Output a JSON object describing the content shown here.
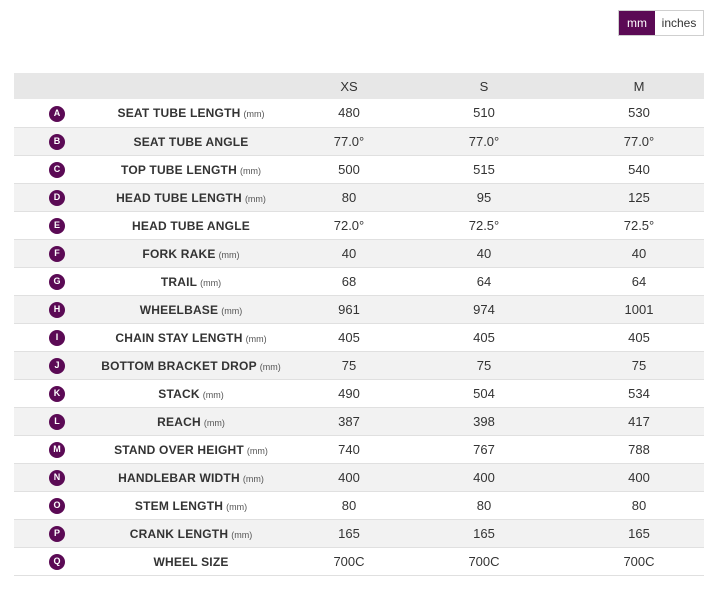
{
  "units": {
    "mm_label": "mm",
    "inches_label": "inches",
    "selected": "mm"
  },
  "colors": {
    "accent": "#5b0a55",
    "header_bg": "#e7e7e7",
    "row_alt_bg": "#f2f2f2"
  },
  "table": {
    "sizes": [
      "XS",
      "S",
      "M"
    ],
    "rows": [
      {
        "letter": "A",
        "name": "SEAT TUBE LENGTH",
        "unit": "(mm)",
        "values": [
          "480",
          "510",
          "530"
        ]
      },
      {
        "letter": "B",
        "name": "SEAT TUBE ANGLE",
        "unit": "",
        "values": [
          "77.0°",
          "77.0°",
          "77.0°"
        ]
      },
      {
        "letter": "C",
        "name": "TOP TUBE LENGTH",
        "unit": "(mm)",
        "values": [
          "500",
          "515",
          "540"
        ]
      },
      {
        "letter": "D",
        "name": "HEAD TUBE LENGTH",
        "unit": "(mm)",
        "values": [
          "80",
          "95",
          "125"
        ]
      },
      {
        "letter": "E",
        "name": "HEAD TUBE ANGLE",
        "unit": "",
        "values": [
          "72.0°",
          "72.5°",
          "72.5°"
        ]
      },
      {
        "letter": "F",
        "name": "FORK RAKE",
        "unit": "(mm)",
        "values": [
          "40",
          "40",
          "40"
        ]
      },
      {
        "letter": "G",
        "name": "TRAIL",
        "unit": "(mm)",
        "values": [
          "68",
          "64",
          "64"
        ]
      },
      {
        "letter": "H",
        "name": "WHEELBASE",
        "unit": "(mm)",
        "values": [
          "961",
          "974",
          "1001"
        ]
      },
      {
        "letter": "I",
        "name": "CHAIN STAY LENGTH",
        "unit": "(mm)",
        "values": [
          "405",
          "405",
          "405"
        ]
      },
      {
        "letter": "J",
        "name": "BOTTOM BRACKET DROP",
        "unit": "(mm)",
        "values": [
          "75",
          "75",
          "75"
        ]
      },
      {
        "letter": "K",
        "name": "STACK",
        "unit": "(mm)",
        "values": [
          "490",
          "504",
          "534"
        ]
      },
      {
        "letter": "L",
        "name": "REACH",
        "unit": "(mm)",
        "values": [
          "387",
          "398",
          "417"
        ]
      },
      {
        "letter": "M",
        "name": "STAND OVER HEIGHT",
        "unit": "(mm)",
        "values": [
          "740",
          "767",
          "788"
        ]
      },
      {
        "letter": "N",
        "name": "HANDLEBAR WIDTH",
        "unit": "(mm)",
        "values": [
          "400",
          "400",
          "400"
        ]
      },
      {
        "letter": "O",
        "name": "STEM LENGTH",
        "unit": "(mm)",
        "values": [
          "80",
          "80",
          "80"
        ]
      },
      {
        "letter": "P",
        "name": "CRANK LENGTH",
        "unit": "(mm)",
        "values": [
          "165",
          "165",
          "165"
        ]
      },
      {
        "letter": "Q",
        "name": "WHEEL SIZE",
        "unit": "",
        "values": [
          "700C",
          "700C",
          "700C"
        ]
      }
    ]
  }
}
